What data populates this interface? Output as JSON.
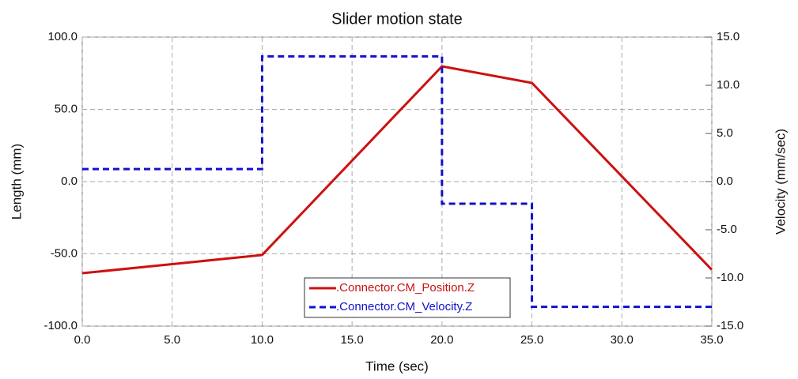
{
  "chart_data": {
    "type": "line",
    "title": "Slider motion state",
    "xlabel": "Time (sec)",
    "ylabel": "Length (mm)",
    "y2label": "Velocity (mm/sec)",
    "xlim": [
      0,
      35
    ],
    "ylim": [
      -100,
      100
    ],
    "y2lim": [
      -15,
      15
    ],
    "xticks": [
      {
        "value": 0,
        "label": "0.0"
      },
      {
        "value": 5,
        "label": "5.0"
      },
      {
        "value": 10,
        "label": "10.0"
      },
      {
        "value": 15,
        "label": "15.0"
      },
      {
        "value": 20,
        "label": "20.0"
      },
      {
        "value": 25,
        "label": "25.0"
      },
      {
        "value": 30,
        "label": "30.0"
      },
      {
        "value": 35,
        "label": "35.0"
      }
    ],
    "yticks": [
      {
        "value": -100,
        "label": "-100.0"
      },
      {
        "value": -50,
        "label": "-50.0"
      },
      {
        "value": 0,
        "label": "0.0"
      },
      {
        "value": 50,
        "label": "50.0"
      },
      {
        "value": 100,
        "label": "100.0"
      }
    ],
    "y2ticks": [
      {
        "value": -15,
        "label": "-15.0"
      },
      {
        "value": -10,
        "label": "-10.0"
      },
      {
        "value": -5,
        "label": "-5.0"
      },
      {
        "value": 0,
        "label": "0.0"
      },
      {
        "value": 5,
        "label": "5.0"
      },
      {
        "value": 10,
        "label": "10.0"
      },
      {
        "value": 15,
        "label": "15.0"
      }
    ],
    "grid": true,
    "legend": "bottom",
    "series": [
      {
        "name": ".Connector.CM_Position.Z",
        "color": "#cc1111",
        "dash": false,
        "x": [
          0,
          10,
          20,
          25,
          35
        ],
        "values": [
          -63.4,
          -50.8,
          79.8,
          68.3,
          -61.0
        ]
      },
      {
        "name": ".Connector.CM_Velocity.Z",
        "color": "#1111cc",
        "dash": true,
        "axis": "y2",
        "x": [
          0,
          10,
          10,
          20,
          20,
          25,
          25,
          35
        ],
        "values": [
          1.3,
          1.3,
          13.0,
          13.0,
          -2.3,
          -2.3,
          -13.0,
          -13.0
        ]
      }
    ]
  }
}
